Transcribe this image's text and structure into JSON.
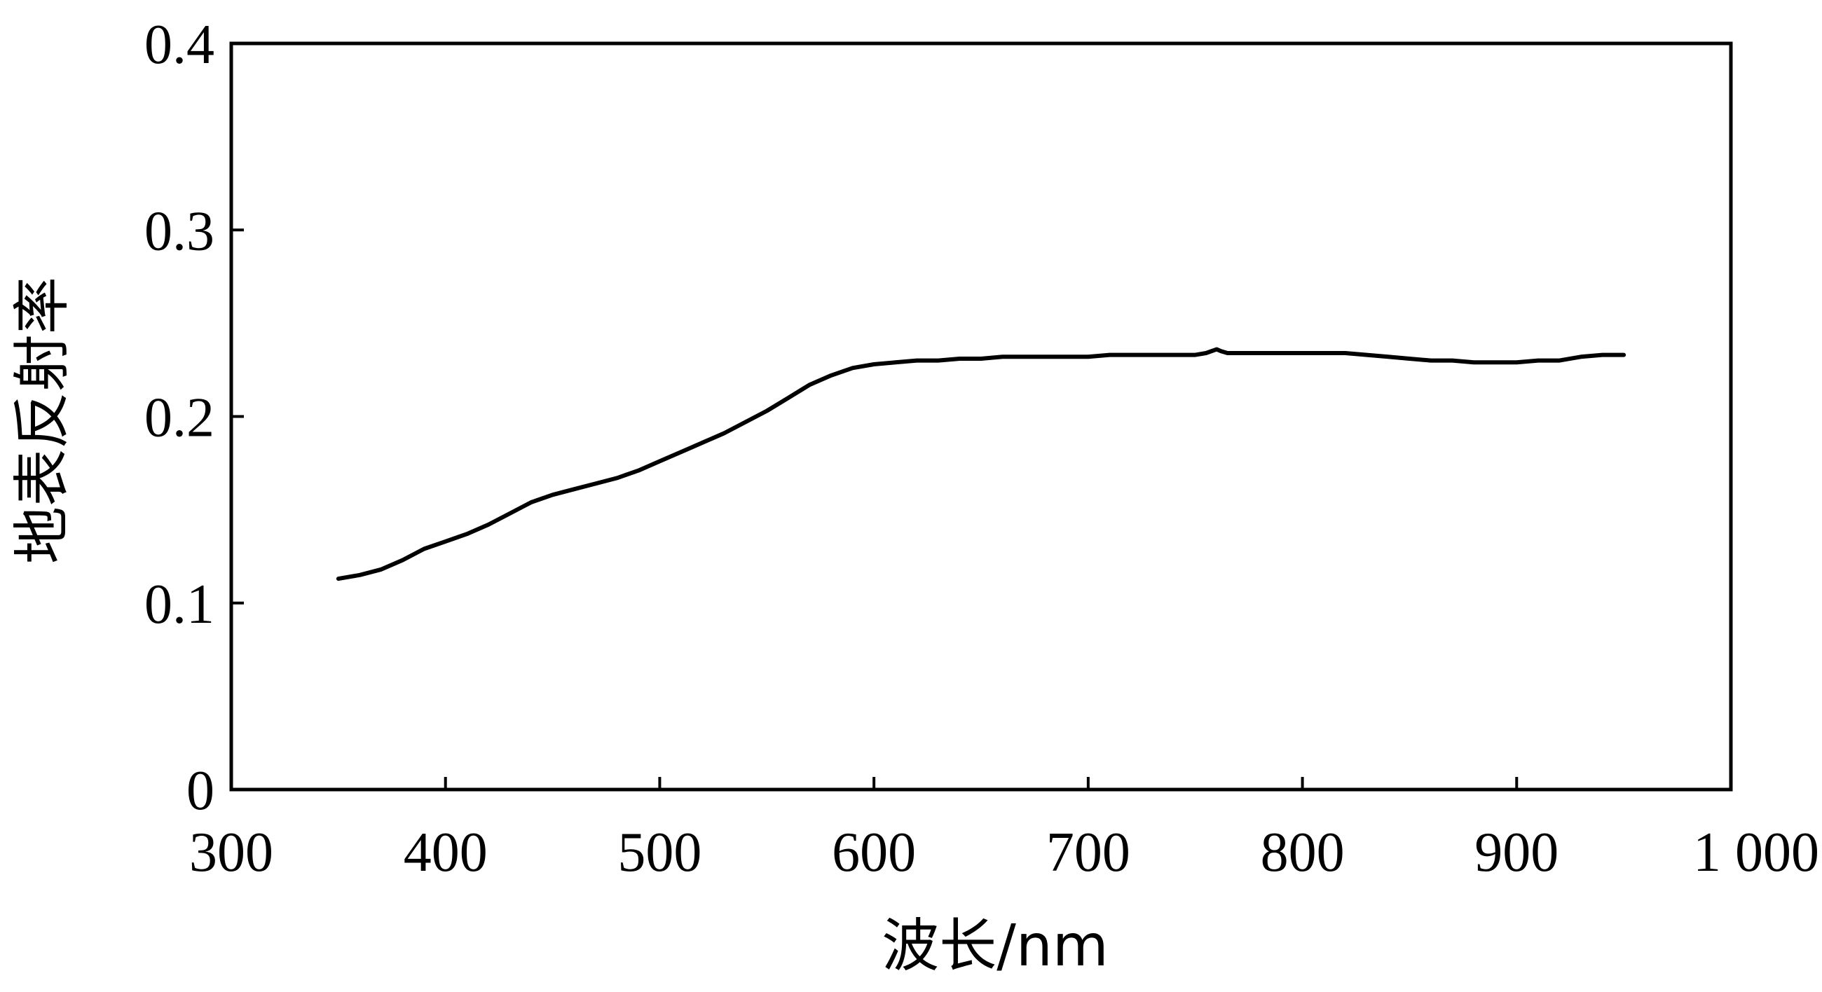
{
  "chart_data": {
    "type": "line",
    "title": "",
    "xlabel": "波长/nm",
    "ylabel": "地表反射率",
    "xlim": [
      300,
      1000
    ],
    "ylim": [
      0,
      0.4
    ],
    "x_ticks": [
      300,
      400,
      500,
      600,
      700,
      800,
      900,
      1000
    ],
    "x_tick_labels": [
      "300",
      "400",
      "500",
      "600",
      "700",
      "800",
      "900",
      "1 000"
    ],
    "y_ticks": [
      0,
      0.1,
      0.2,
      0.3,
      0.4
    ],
    "y_tick_labels": [
      "0",
      "0.1",
      "0.2",
      "0.3",
      "0.4"
    ],
    "grid": false,
    "legend": "none",
    "line_color": "#000000",
    "series": [
      {
        "x": [
          350,
          360,
          370,
          380,
          390,
          400,
          410,
          420,
          430,
          440,
          450,
          460,
          470,
          480,
          490,
          500,
          510,
          520,
          530,
          540,
          550,
          560,
          570,
          580,
          590,
          600,
          610,
          620,
          630,
          640,
          650,
          660,
          670,
          680,
          690,
          700,
          710,
          720,
          730,
          740,
          750,
          755,
          760,
          762,
          765,
          770,
          780,
          790,
          800,
          810,
          820,
          830,
          840,
          850,
          860,
          870,
          880,
          890,
          900,
          910,
          920,
          930,
          940,
          950
        ],
        "y": [
          0.113,
          0.115,
          0.118,
          0.123,
          0.129,
          0.133,
          0.137,
          0.142,
          0.148,
          0.154,
          0.158,
          0.161,
          0.164,
          0.167,
          0.171,
          0.176,
          0.181,
          0.186,
          0.191,
          0.197,
          0.203,
          0.21,
          0.217,
          0.222,
          0.226,
          0.228,
          0.229,
          0.23,
          0.23,
          0.231,
          0.231,
          0.232,
          0.232,
          0.232,
          0.232,
          0.232,
          0.233,
          0.233,
          0.233,
          0.233,
          0.233,
          0.234,
          0.236,
          0.235,
          0.234,
          0.234,
          0.234,
          0.234,
          0.234,
          0.234,
          0.234,
          0.233,
          0.232,
          0.231,
          0.23,
          0.23,
          0.229,
          0.229,
          0.229,
          0.23,
          0.23,
          0.232,
          0.233,
          0.233
        ]
      }
    ]
  }
}
